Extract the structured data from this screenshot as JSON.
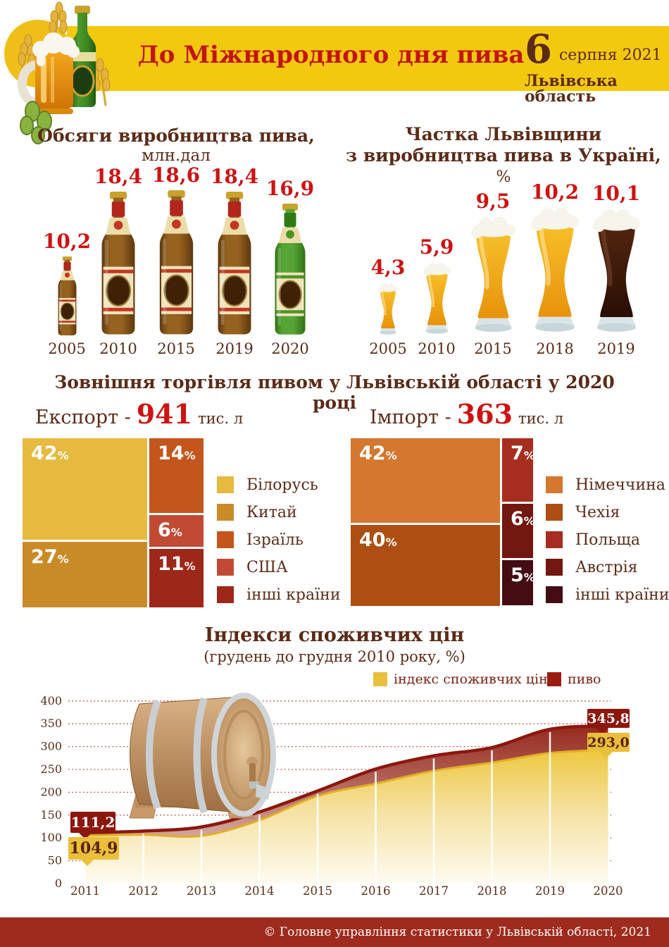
{
  "header": {
    "title": "До Міжнародного дня пива",
    "date_day": "6",
    "date_rest": "серпня 2021",
    "region": "Львівська область"
  },
  "production": {
    "title": "Обсяги виробництва пива,",
    "unit": "млн.дал"
  },
  "share": {
    "title_line1": "Частка Львівщини",
    "title_line2": "з виробництва пива в Україні,",
    "title_suffix": "%"
  },
  "trade": {
    "title": "Зовнішня торгівля пивом у Львівській області у 2020 році",
    "export": {
      "label": "Експорт -",
      "value": "941",
      "unit": "тис. л"
    },
    "import": {
      "label": "Імпорт -",
      "value": "363",
      "unit": "тис. л"
    }
  },
  "cpi": {
    "title": "Індекси споживчих цін",
    "subtitle": "(грудень до грудня 2010 року, %)",
    "legend": [
      {
        "label": "індекс споживчих цін",
        "color": "#E9BF3B"
      },
      {
        "label": "пиво",
        "color": "#9B1D12"
      }
    ],
    "callouts": {
      "beer_start": "111,2",
      "cpi_start": "104,9",
      "beer_end": "345,8",
      "cpi_end": "293,0"
    }
  },
  "footer": {
    "text": "© Головне управління статистики у Львівській області, 2021"
  },
  "colors": {
    "band_yellow": "#F3C90F",
    "title_red": "#C41414",
    "value_red": "#CE1212",
    "dark_brown_text": "#5B2B17",
    "beer_line": "#8C170E",
    "footer_bg": "#9E2B1D"
  },
  "chart_data": [
    {
      "type": "bar",
      "style": "pictorial-bottles",
      "title": "Обсяги виробництва пива, млн.дал",
      "categories": [
        "2005",
        "2010",
        "2015",
        "2019",
        "2020"
      ],
      "values": [
        10.2,
        18.4,
        18.6,
        18.4,
        16.9
      ],
      "ylabel": "млн.дал",
      "marker_colors": [
        "brown",
        "brown",
        "brown",
        "brown",
        "green"
      ]
    },
    {
      "type": "bar",
      "style": "pictorial-glasses",
      "title": "Частка Львівщини з виробництва пива в Україні, %",
      "categories": [
        "2005",
        "2010",
        "2015",
        "2018",
        "2019"
      ],
      "values": [
        4.3,
        5.9,
        9.5,
        10.2,
        10.1
      ],
      "marker_colors": [
        "light",
        "light",
        "light",
        "light",
        "dark"
      ]
    },
    {
      "type": "pie",
      "layout": "treemap",
      "title": "Експорт - 941 тис. л",
      "labels": [
        "Білорусь",
        "Китай",
        "Ізраїль",
        "США",
        "інші країни"
      ],
      "values": [
        42,
        27,
        14,
        6,
        11
      ],
      "colors": [
        "#E6BA3F",
        "#C98B27",
        "#C4561D",
        "#C14A35",
        "#9D2819"
      ],
      "left_column": [
        0,
        1
      ]
    },
    {
      "type": "pie",
      "layout": "treemap",
      "title": "Імпорт - 363 тис. л",
      "labels": [
        "Німеччина",
        "Чехія",
        "Польща",
        "Австрія",
        "інші країни"
      ],
      "values": [
        42,
        40,
        7,
        6,
        5
      ],
      "colors": [
        "#D4772F",
        "#AD4E12",
        "#A72E1F",
        "#731711",
        "#430D13"
      ],
      "left_column": [
        0,
        1
      ]
    },
    {
      "type": "area",
      "title": "Індекси споживчих цін (грудень до грудня 2010 року, %)",
      "x": [
        2011,
        2012,
        2013,
        2014,
        2015,
        2016,
        2017,
        2018,
        2019,
        2020
      ],
      "series": [
        {
          "name": "індекс споживчих цін",
          "color": "#E9BF3B",
          "values": [
            104.9,
            107,
            104.5,
            139,
            192,
            219,
            247,
            265,
            286,
            293.0
          ]
        },
        {
          "name": "пиво",
          "color": "#8C170E",
          "values": [
            111.2,
            115,
            124,
            157,
            203,
            251,
            280,
            298,
            338,
            345.8
          ]
        }
      ],
      "ylim": [
        0,
        400
      ],
      "yticks": [
        0,
        50,
        100,
        150,
        200,
        250,
        300,
        350,
        400
      ],
      "grid": true,
      "legend_position": "top-right"
    }
  ]
}
